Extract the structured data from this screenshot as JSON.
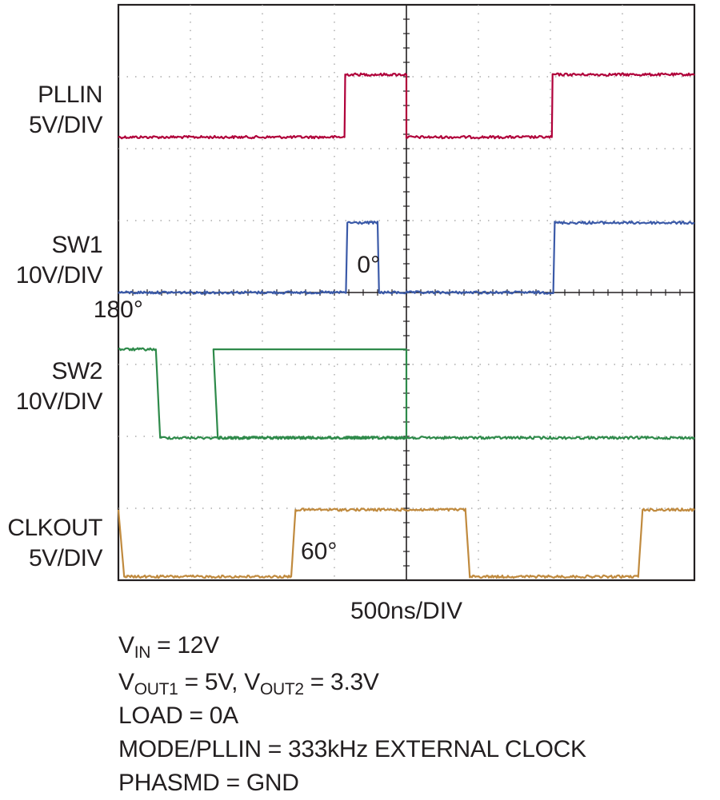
{
  "chart_data": {
    "type": "line",
    "title": "",
    "xlabel": "500ns/DIV",
    "x_unit_per_div": "500ns",
    "x_range_ns": [
      0,
      4000
    ],
    "divisions": {
      "x": 8,
      "y": 8
    },
    "grid": true,
    "series": [
      {
        "name": "PLLIN",
        "scale": "5V/DIV",
        "color": "#b0003a",
        "phase_label": "",
        "levels_div": {
          "low": 6.16,
          "high": 7.03
        },
        "x": [
          0,
          1570,
          1575,
          2000,
          2000,
          3010,
          3015,
          4000
        ],
        "level": [
          "low",
          "low",
          "high",
          "high",
          "low",
          "low",
          "high",
          "high"
        ]
      },
      {
        "name": "SW1",
        "scale": "10V/DIV",
        "color": "#3b5aa8",
        "phase_label": "0°",
        "levels_div": {
          "low": 4.0,
          "high": 4.97
        },
        "x": [
          0,
          1580,
          1590,
          1800,
          1810,
          3020,
          3030,
          4000
        ],
        "level": [
          "low",
          "low",
          "high",
          "high",
          "low",
          "low",
          "high",
          "high"
        ]
      },
      {
        "name": "SW2",
        "scale": "10V/DIV",
        "color": "#2e8a4a",
        "phase_label": "180°",
        "levels_div": {
          "low": 1.98,
          "high": 3.21
        },
        "x": [
          0,
          260,
          290,
          2000,
          2000,
          660,
          690,
          4000
        ],
        "level": [
          "high",
          "high",
          "low",
          "low",
          "high",
          "high",
          "low",
          "low"
        ]
      },
      {
        "name": "CLKOUT",
        "scale": "5V/DIV",
        "color": "#c08a3e",
        "phase_label": "60°",
        "levels_div": {
          "low": 0.05,
          "high": 0.98
        },
        "x": [
          0,
          40,
          60,
          1200,
          1230,
          2410,
          2440,
          3610,
          3640,
          4000
        ],
        "level": [
          "high",
          "low",
          "low",
          "low",
          "high",
          "high",
          "low",
          "low",
          "high",
          "high"
        ]
      }
    ]
  },
  "conditions": {
    "vin": {
      "v": "V",
      "sub": "IN",
      "rest": " = 12V"
    },
    "vout": {
      "v1": "V",
      "sub1": "OUT1",
      "rest1": " = 5V, ",
      "v2": "V",
      "sub2": "OUT2",
      "rest2": " = 3.3V"
    },
    "load": "LOAD = 0A",
    "mode": "MODE/PLLIN = 333kHz EXTERNAL CLOCK",
    "phasmd": "PHASMD = GND"
  }
}
